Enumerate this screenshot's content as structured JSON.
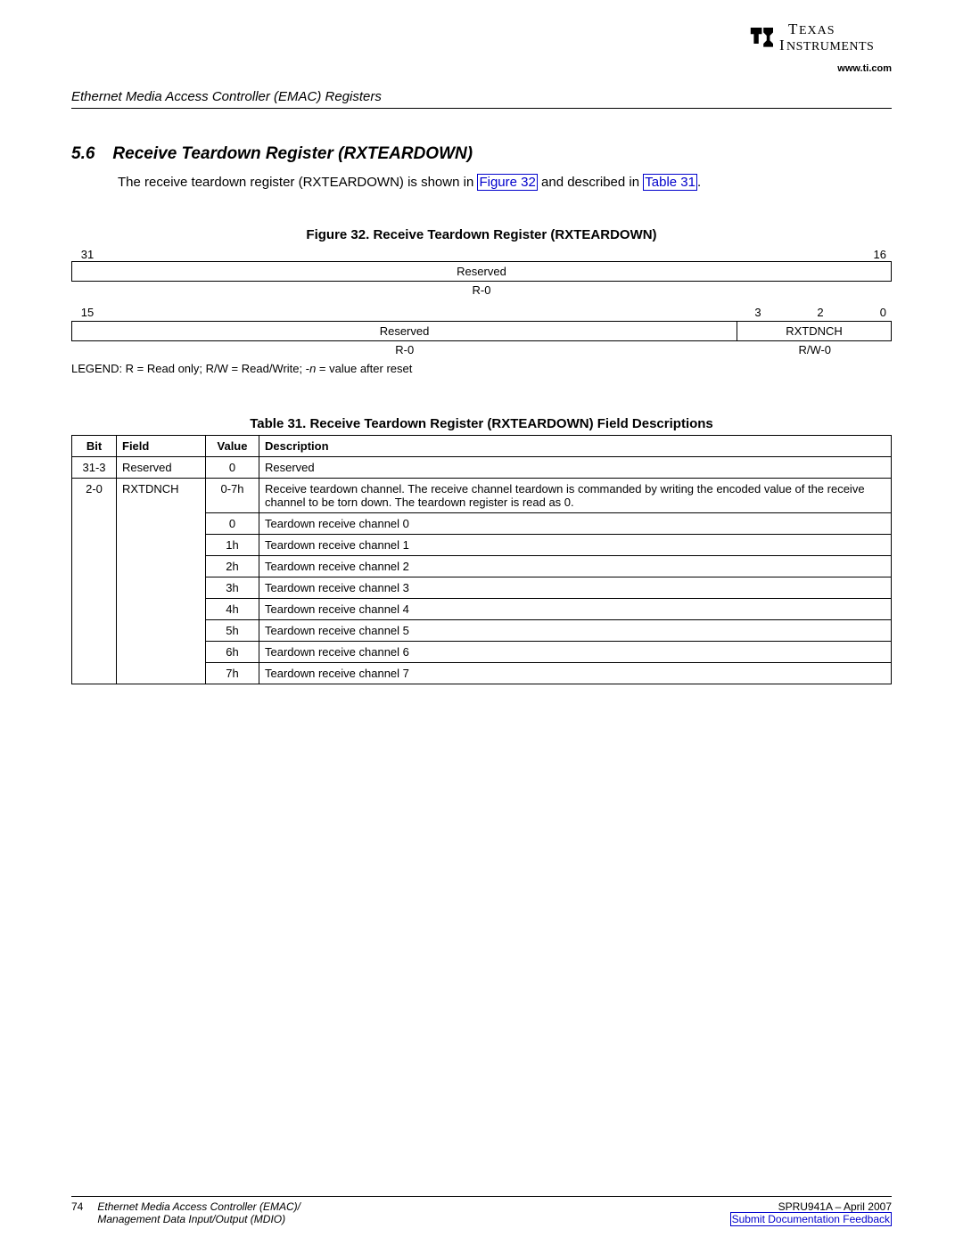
{
  "logo": {
    "url": "www.ti.com",
    "brand_top": "TEXAS",
    "brand_bottom": "INSTRUMENTS"
  },
  "header": {
    "running_title": "Ethernet Media Access Controller (EMAC) Registers"
  },
  "section": {
    "number": "5.6",
    "title": "Receive Teardown Register (RXTEARDOWN)",
    "intro_pre": "The receive teardown register (RXTEARDOWN) is shown in ",
    "intro_link1": "Figure 32",
    "intro_mid": " and described in ",
    "intro_link2": "Table 31",
    "intro_post": "."
  },
  "figure": {
    "title": "Figure 32. Receive Teardown Register (RXTEARDOWN)",
    "row1": {
      "bit_left": "31",
      "bit_right": "16",
      "field": "Reserved",
      "access": "R-0"
    },
    "row2": {
      "bit_left": "15",
      "bit_mid1": "3",
      "bit_mid2": "2",
      "bit_right": "0",
      "field_res": "Reserved",
      "field_ch": "RXTDNCH",
      "access_res": "R-0",
      "access_ch": "R/W-0"
    },
    "legend_pre": "LEGEND: R = Read only; R/W = Read/Write; -",
    "legend_n": "n",
    "legend_post": " = value after reset"
  },
  "table": {
    "title": "Table 31. Receive Teardown Register (RXTEARDOWN) Field Descriptions",
    "headers": {
      "bit": "Bit",
      "field": "Field",
      "value": "Value",
      "desc": "Description"
    },
    "rows": [
      {
        "bit": "31-3",
        "field": "Reserved",
        "value": "0",
        "desc": "Reserved"
      },
      {
        "bit": "2-0",
        "field": "RXTDNCH",
        "value": "0-7h",
        "desc": "Receive teardown channel. The receive channel teardown is commanded by writing the encoded value of the receive channel to be torn down. The teardown register is read as 0."
      },
      {
        "bit": "",
        "field": "",
        "value": "0",
        "desc": "Teardown receive channel 0"
      },
      {
        "bit": "",
        "field": "",
        "value": "1h",
        "desc": "Teardown receive channel 1"
      },
      {
        "bit": "",
        "field": "",
        "value": "2h",
        "desc": "Teardown receive channel 2"
      },
      {
        "bit": "",
        "field": "",
        "value": "3h",
        "desc": "Teardown receive channel 3"
      },
      {
        "bit": "",
        "field": "",
        "value": "4h",
        "desc": "Teardown receive channel 4"
      },
      {
        "bit": "",
        "field": "",
        "value": "5h",
        "desc": "Teardown receive channel 5"
      },
      {
        "bit": "",
        "field": "",
        "value": "6h",
        "desc": "Teardown receive channel 6"
      },
      {
        "bit": "",
        "field": "",
        "value": "7h",
        "desc": "Teardown receive channel 7"
      }
    ]
  },
  "footer": {
    "page": "74",
    "title1": "Ethernet Media Access Controller (EMAC)/",
    "title2": "Management Data Input/Output (MDIO)",
    "docnum": "SPRU941A – April 2007",
    "feedback": "Submit Documentation Feedback"
  }
}
